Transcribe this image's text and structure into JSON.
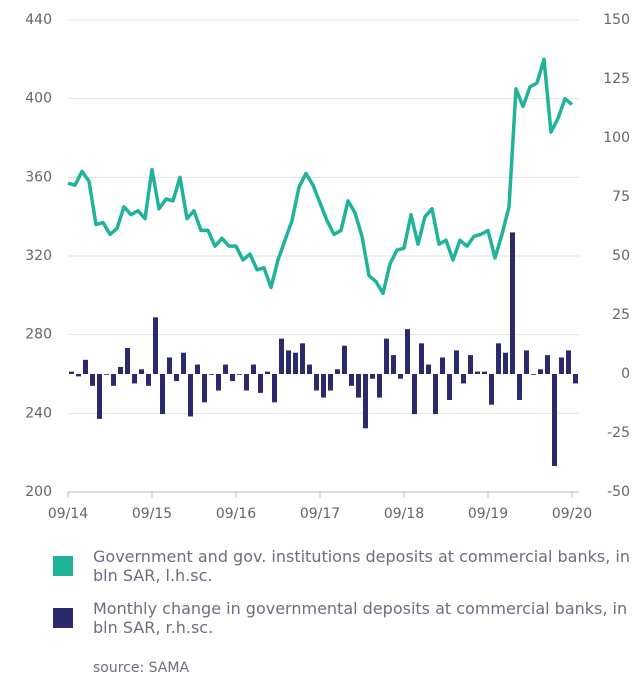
{
  "chart_data": {
    "type": "combo",
    "xlim": [
      0,
      73
    ],
    "xticks": [
      {
        "value": 0,
        "label": "09/14"
      },
      {
        "value": 12,
        "label": "09/15"
      },
      {
        "value": 24,
        "label": "09/16"
      },
      {
        "value": 36,
        "label": "09/17"
      },
      {
        "value": 48,
        "label": "09/18"
      },
      {
        "value": 60,
        "label": "09/19"
      },
      {
        "value": 72,
        "label": "09/20"
      }
    ],
    "ylim": [
      200,
      440
    ],
    "yticks": [
      200,
      240,
      280,
      320,
      360,
      400,
      440
    ],
    "y2lim": [
      -50,
      150
    ],
    "y2ticks": [
      -50,
      -25,
      0,
      25,
      50,
      75,
      100,
      125,
      150
    ],
    "grid": true,
    "series": [
      {
        "name": "Government and gov. institutions deposits at commercial banks, in bln SAR, l.h.sc.",
        "type": "line",
        "color": "#1fb39a",
        "values": [
          357,
          356,
          363,
          358,
          336,
          337,
          331,
          334,
          345,
          341,
          343,
          339,
          364,
          344,
          349,
          348,
          360,
          339,
          343,
          333,
          333,
          325,
          329,
          325,
          325,
          318,
          321,
          313,
          314,
          304,
          318,
          328,
          338,
          355,
          362,
          356,
          347,
          338,
          331,
          333,
          348,
          342,
          330,
          310,
          307,
          301,
          316,
          323,
          324,
          341,
          326,
          340,
          344,
          326,
          328,
          318,
          328,
          325,
          330,
          331,
          333,
          319,
          331,
          345,
          405,
          396,
          406,
          408,
          420,
          383,
          390,
          400,
          397
        ]
      },
      {
        "name": "Monthly change in governmental deposits at commercial banks, in bln SAR, r.h.sc.",
        "type": "bar",
        "axis": "y2",
        "color": "#2b2a6b",
        "values": [
          1,
          -1,
          6,
          -5,
          -19,
          0,
          -5,
          3,
          11,
          -4,
          2,
          -5,
          24,
          -17,
          7,
          -3,
          9,
          -18,
          4,
          -12,
          0,
          -7,
          4,
          -3,
          0,
          -7,
          4,
          -8,
          1,
          -12,
          15,
          10,
          9,
          13,
          4,
          -7,
          -10,
          -7,
          2,
          12,
          -5,
          -10,
          -23,
          -2,
          -10,
          15,
          8,
          -2,
          19,
          -17,
          13,
          4,
          -17,
          7,
          -11,
          10,
          -4,
          8,
          1,
          1,
          -13,
          13,
          9,
          60,
          -11,
          10,
          0,
          2,
          8,
          -39,
          7,
          10,
          -4
        ]
      }
    ],
    "source": "source: SAMA"
  }
}
